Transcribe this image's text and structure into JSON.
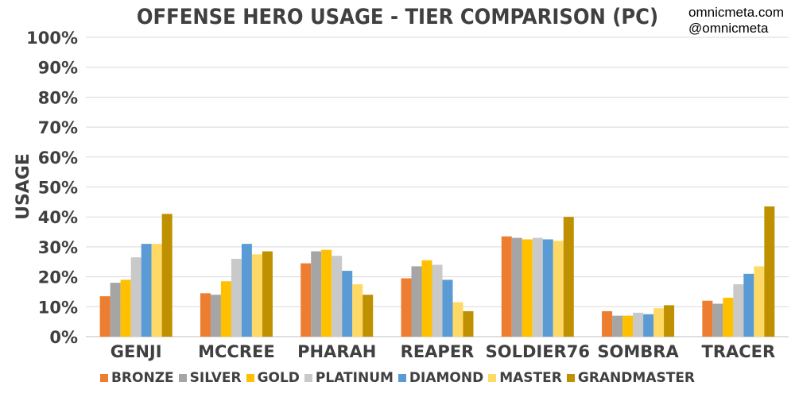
{
  "watermark": {
    "site": "omnicmeta.com",
    "handle": "@omnicmeta"
  },
  "chart_data": {
    "type": "bar",
    "title": "OFFENSE HERO USAGE - TIER COMPARISON (PC)",
    "ylabel": "USAGE",
    "xlabel": "",
    "ylim": [
      0,
      100
    ],
    "yticks": [
      "0%",
      "10%",
      "20%",
      "30%",
      "40%",
      "50%",
      "60%",
      "70%",
      "80%",
      "90%",
      "100%"
    ],
    "grid": true,
    "legend_position": "bottom",
    "categories": [
      "GENJI",
      "MCCREE",
      "PHARAH",
      "REAPER",
      "SOLDIER76",
      "SOMBRA",
      "TRACER"
    ],
    "series": [
      {
        "name": "BRONZE",
        "color": "#ED7D31",
        "values": [
          13.5,
          14.5,
          24.5,
          19.5,
          33.5,
          8.5,
          12.0
        ]
      },
      {
        "name": "SILVER",
        "color": "#A5A5A5",
        "values": [
          18.0,
          14.0,
          28.5,
          23.5,
          33.0,
          7.0,
          11.0
        ]
      },
      {
        "name": "GOLD",
        "color": "#FFC000",
        "values": [
          19.0,
          18.5,
          29.0,
          25.5,
          32.5,
          7.0,
          13.0
        ]
      },
      {
        "name": "PLATINUM",
        "color": "#C9C9C9",
        "values": [
          26.5,
          26.0,
          27.0,
          24.0,
          33.0,
          8.0,
          17.5
        ]
      },
      {
        "name": "DIAMOND",
        "color": "#5B9BD5",
        "values": [
          31.0,
          31.0,
          22.0,
          19.0,
          32.5,
          7.5,
          21.0
        ]
      },
      {
        "name": "MASTER",
        "color": "#FFD966",
        "values": [
          31.0,
          27.5,
          17.5,
          11.5,
          32.0,
          9.5,
          23.5
        ]
      },
      {
        "name": "GRANDMASTER",
        "color": "#BF9000",
        "values": [
          41.0,
          28.5,
          14.0,
          8.5,
          40.0,
          10.5,
          43.5
        ]
      }
    ]
  }
}
